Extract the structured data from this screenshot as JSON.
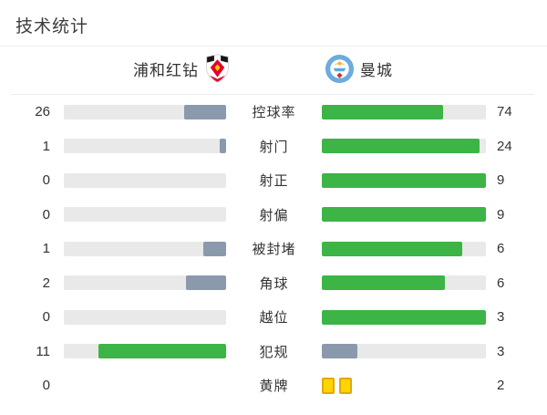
{
  "title": "技术统计",
  "header": {
    "home_team": "浦和红钻",
    "away_team": "曼城"
  },
  "colors": {
    "green": "#3cb446",
    "slate": "#8a99ac",
    "track": "#e9e9e9",
    "card_fill": "#ffd403",
    "card_border": "#e4a801",
    "text": "#333333"
  },
  "stats": [
    {
      "label": "控球率",
      "home": 26,
      "away": 74,
      "home_pct": 26,
      "away_pct": 74,
      "home_color": "slate",
      "away_color": "green"
    },
    {
      "label": "射门",
      "home": 1,
      "away": 24,
      "home_pct": 4,
      "away_pct": 96,
      "home_color": "slate",
      "away_color": "green"
    },
    {
      "label": "射正",
      "home": 0,
      "away": 9,
      "home_pct": 0,
      "away_pct": 100,
      "home_color": "slate",
      "away_color": "green"
    },
    {
      "label": "射偏",
      "home": 0,
      "away": 9,
      "home_pct": 0,
      "away_pct": 100,
      "home_color": "slate",
      "away_color": "green"
    },
    {
      "label": "被封堵",
      "home": 1,
      "away": 6,
      "home_pct": 14.3,
      "away_pct": 85.7,
      "home_color": "slate",
      "away_color": "green"
    },
    {
      "label": "角球",
      "home": 2,
      "away": 6,
      "home_pct": 25,
      "away_pct": 75,
      "home_color": "slate",
      "away_color": "green"
    },
    {
      "label": "越位",
      "home": 0,
      "away": 3,
      "home_pct": 0,
      "away_pct": 100,
      "home_color": "slate",
      "away_color": "green"
    },
    {
      "label": "犯规",
      "home": 11,
      "away": 3,
      "home_pct": 78.6,
      "away_pct": 21.4,
      "home_color": "green",
      "away_color": "slate"
    },
    {
      "label": "黄牌",
      "home": 0,
      "away": 2,
      "type": "cards",
      "home_cards": 0,
      "away_cards": 2
    }
  ]
}
